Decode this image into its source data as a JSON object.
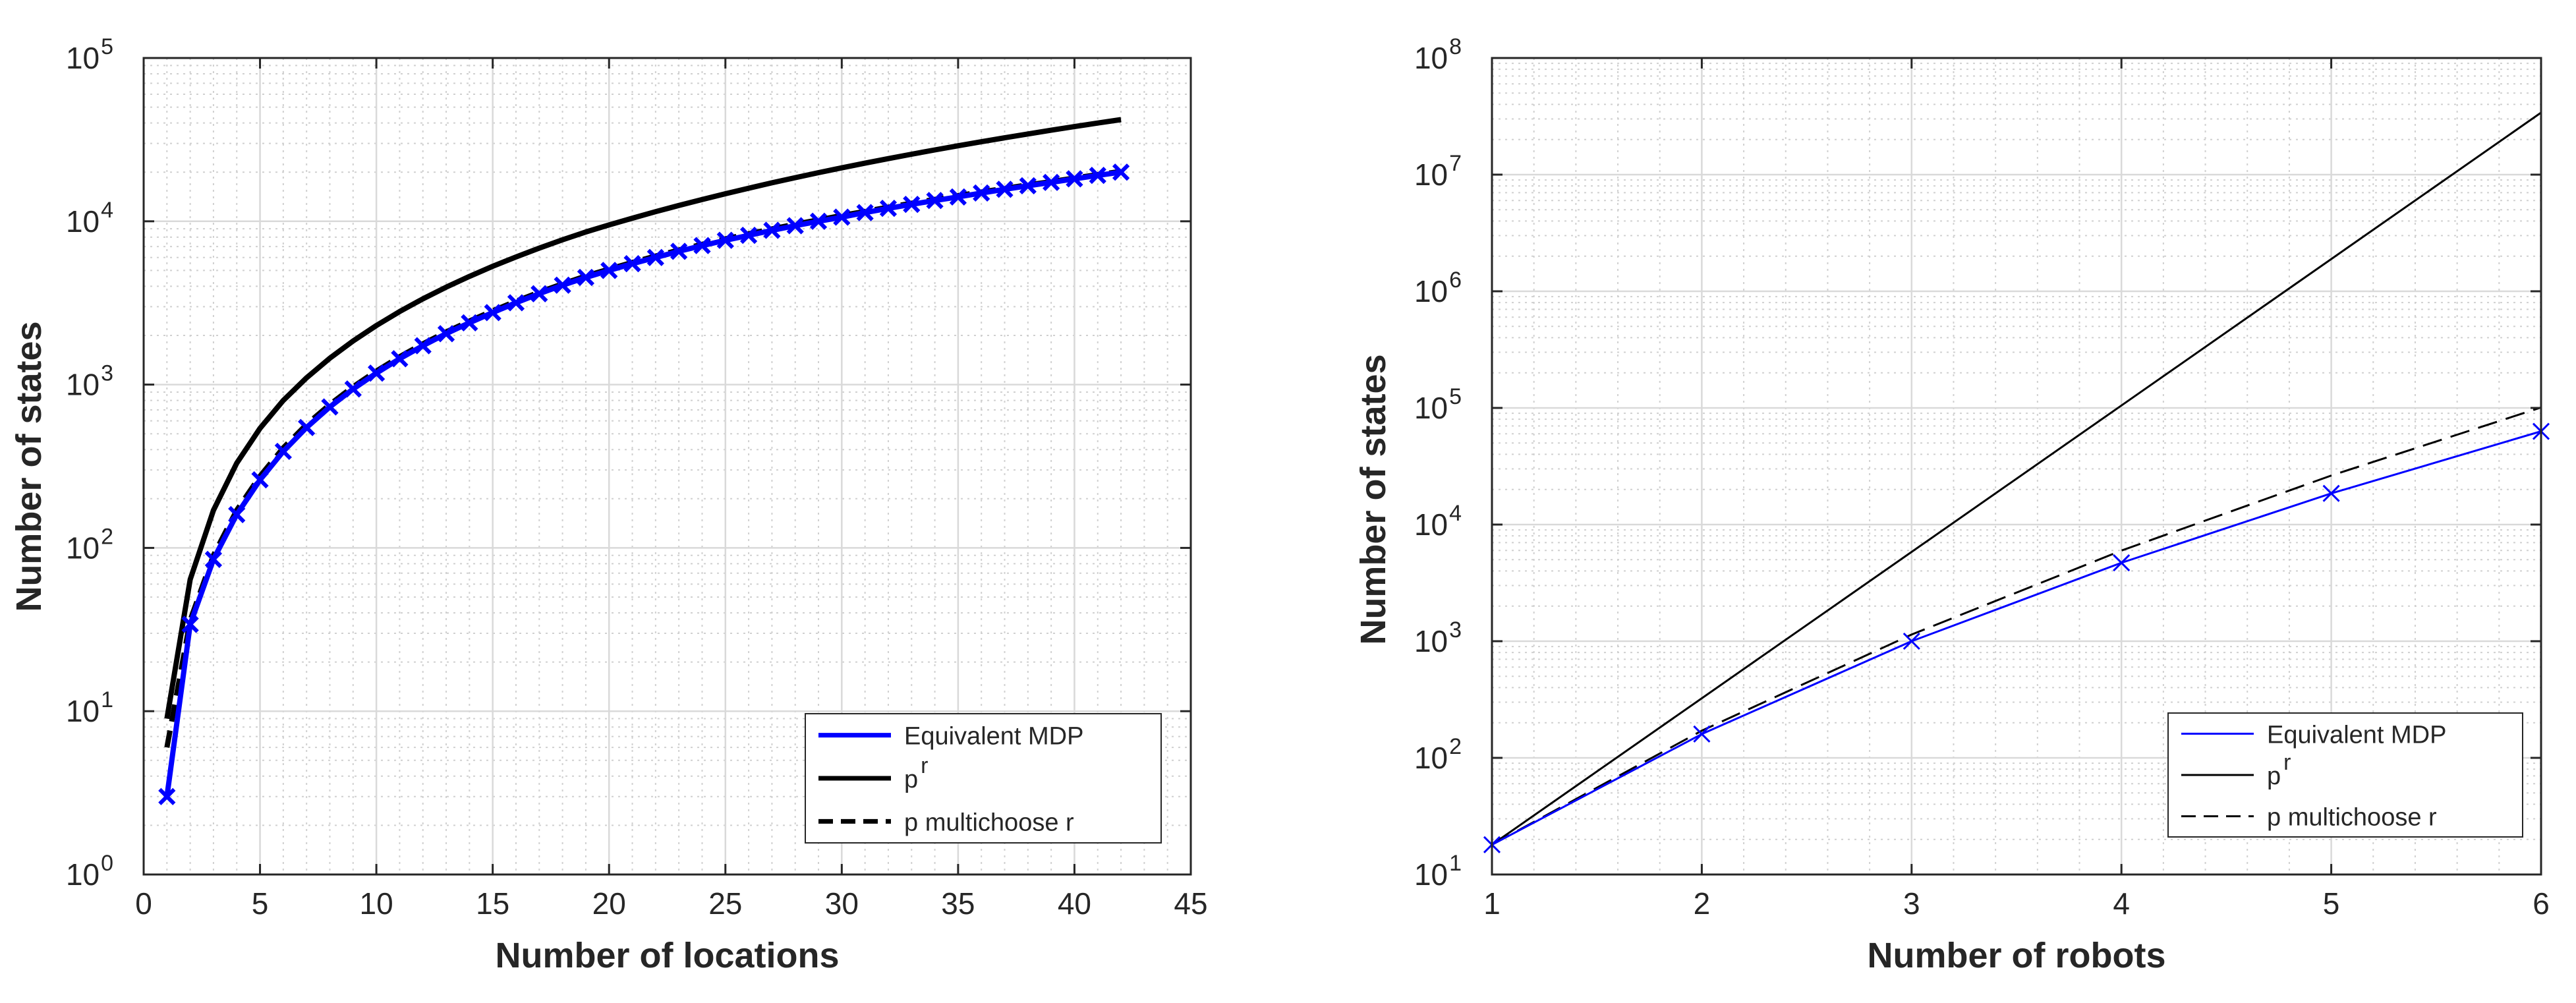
{
  "chart_data": [
    {
      "type": "line",
      "id": "left",
      "title": "",
      "xlabel": "Number of locations",
      "ylabel": "Number of states",
      "xlim": [
        0,
        45
      ],
      "ylim": [
        1,
        100000
      ],
      "yscale": "log",
      "grid": true,
      "minor_grid": true,
      "xticks": [
        "0",
        "5",
        "10",
        "15",
        "20",
        "25",
        "30",
        "35",
        "40",
        "45"
      ],
      "yticks": [
        {
          "base": "10",
          "exp": "0"
        },
        {
          "base": "10",
          "exp": "1"
        },
        {
          "base": "10",
          "exp": "2"
        },
        {
          "base": "10",
          "exp": "3"
        },
        {
          "base": "10",
          "exp": "4"
        },
        {
          "base": "10",
          "exp": "5"
        }
      ],
      "legend": {
        "location": "bottom-right",
        "entries": [
          {
            "label": "Equivalent MDP",
            "sup": "",
            "color": "#0000ff",
            "dash": "solid"
          },
          {
            "label": "p",
            "sup": "r",
            "color": "#000000",
            "dash": "solid"
          },
          {
            "label": "p multichoose r",
            "sup": "",
            "color": "#000000",
            "dash": "dashed"
          }
        ]
      },
      "series": [
        {
          "name": "Equivalent MDP",
          "color": "#0000ff",
          "style": "solid",
          "marker": "x",
          "x": [
            1,
            2,
            3,
            4,
            5,
            6,
            7,
            8,
            9,
            10,
            11,
            12,
            13,
            14,
            15,
            16,
            17,
            18,
            19,
            20,
            21,
            22,
            23,
            24,
            25,
            26,
            27,
            28,
            29,
            30,
            31,
            32,
            33,
            34,
            35,
            36,
            37,
            38,
            39,
            40,
            41,
            42
          ],
          "y": [
            3,
            34,
            85,
            160,
            261,
            390,
            546,
            730,
            940,
            1175,
            1440,
            1730,
            2050,
            2390,
            2760,
            3170,
            3600,
            4060,
            4530,
            5000,
            5500,
            6000,
            6550,
            7100,
            7650,
            8200,
            8800,
            9400,
            10000,
            10600,
            11300,
            12000,
            12700,
            13400,
            14100,
            14900,
            15700,
            16500,
            17300,
            18200,
            19100,
            20000
          ]
        },
        {
          "name": "p^r",
          "color": "#000000",
          "style": "solid",
          "marker": "",
          "x": [
            1,
            2,
            3,
            4,
            5,
            6,
            7,
            8,
            9,
            10,
            11,
            12,
            13,
            14,
            15,
            16,
            17,
            18,
            19,
            20,
            21,
            22,
            23,
            24,
            25,
            26,
            27,
            28,
            29,
            30,
            31,
            32,
            33,
            34,
            35,
            36,
            37,
            38,
            39,
            40,
            41,
            42
          ],
          "y": [
            9,
            64,
            170,
            330,
            540,
            800,
            1100,
            1450,
            1850,
            2300,
            2800,
            3350,
            3950,
            4600,
            5300,
            6050,
            6850,
            7700,
            8600,
            9500,
            10450,
            11450,
            12500,
            13600,
            14750,
            15950,
            17200,
            18500,
            19850,
            21250,
            22700,
            24200,
            25750,
            27350,
            29000,
            30700,
            32450,
            34250,
            36100,
            38000,
            39950,
            41950
          ]
        },
        {
          "name": "p multichoose r",
          "color": "#000000",
          "style": "dashed",
          "marker": "",
          "x": [
            1,
            2,
            3,
            4,
            5,
            6,
            7,
            8,
            9,
            10,
            11,
            12,
            13,
            14,
            15,
            16,
            17,
            18,
            19,
            20,
            21,
            22,
            23,
            24,
            25,
            26,
            27,
            28,
            29,
            30,
            31,
            32,
            33,
            34,
            35,
            36,
            37,
            38,
            39,
            40,
            41,
            42
          ],
          "y": [
            6,
            36,
            90,
            170,
            275,
            410,
            570,
            755,
            970,
            1210,
            1480,
            1775,
            2100,
            2450,
            2830,
            3240,
            3680,
            4140,
            4620,
            5100,
            5600,
            6120,
            6670,
            7230,
            7800,
            8380,
            8980,
            9600,
            10200,
            10850,
            11500,
            12200,
            12900,
            13600,
            14350,
            15100,
            15900,
            16700,
            17500,
            18400,
            19300,
            20200
          ]
        }
      ]
    },
    {
      "type": "line",
      "id": "right",
      "title": "",
      "xlabel": "Number of robots",
      "ylabel": "Number of states",
      "xlim": [
        1,
        6
      ],
      "ylim": [
        10,
        100000000
      ],
      "yscale": "log",
      "grid": true,
      "minor_grid": true,
      "xticks": [
        "1",
        "2",
        "3",
        "4",
        "5",
        "6"
      ],
      "yticks": [
        {
          "base": "10",
          "exp": "1"
        },
        {
          "base": "10",
          "exp": "2"
        },
        {
          "base": "10",
          "exp": "3"
        },
        {
          "base": "10",
          "exp": "4"
        },
        {
          "base": "10",
          "exp": "5"
        },
        {
          "base": "10",
          "exp": "6"
        },
        {
          "base": "10",
          "exp": "7"
        },
        {
          "base": "10",
          "exp": "8"
        }
      ],
      "legend": {
        "location": "bottom-right",
        "entries": [
          {
            "label": "Equivalent MDP",
            "sup": "",
            "color": "#0000ff",
            "dash": "solid"
          },
          {
            "label": "p",
            "sup": "r",
            "color": "#000000",
            "dash": "solid"
          },
          {
            "label": "p multichoose r",
            "sup": "",
            "color": "#000000",
            "dash": "dashed"
          }
        ]
      },
      "series": [
        {
          "name": "Equivalent MDP",
          "color": "#0000ff",
          "style": "solid",
          "marker": "x",
          "x": [
            1,
            2,
            3,
            4,
            5,
            6
          ],
          "y": [
            18,
            160,
            1000,
            4700,
            18500,
            63000
          ]
        },
        {
          "name": "p^r",
          "color": "#000000",
          "style": "solid",
          "marker": "",
          "x": [
            1,
            2,
            3,
            4,
            5,
            6
          ],
          "y": [
            18,
            324,
            5832,
            104976,
            1889568,
            34012224
          ]
        },
        {
          "name": "p multichoose r",
          "color": "#000000",
          "style": "dashed",
          "marker": "",
          "x": [
            1,
            2,
            3,
            4,
            5,
            6
          ],
          "y": [
            18,
            171,
            1140,
            5985,
            26334,
            100947
          ]
        }
      ]
    }
  ]
}
